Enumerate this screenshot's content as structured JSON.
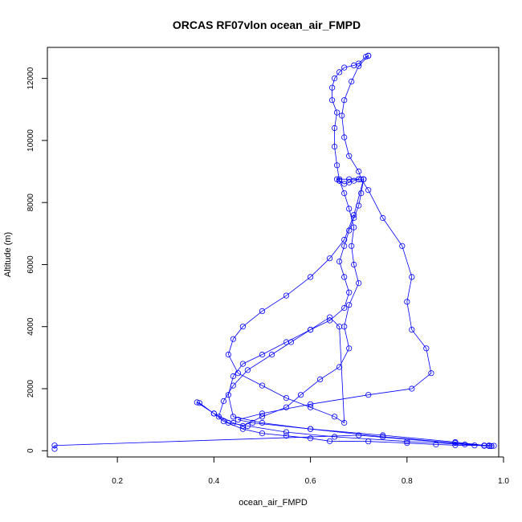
{
  "chart_data": {
    "type": "line",
    "title": "ORCAS RF07vlon ocean_air_FMPD",
    "xlabel": "ocean_air_FMPD",
    "ylabel": "Altitude (m)",
    "xlim": [
      0.055,
      0.99
    ],
    "ylim": [
      -200,
      13000
    ],
    "x_ticks": [
      0.2,
      0.4,
      0.6,
      0.8,
      1.0
    ],
    "x_tick_labels": [
      "0.2",
      "0.4",
      "0.6",
      "0.8",
      "1.0"
    ],
    "y_ticks": [
      0,
      2000,
      4000,
      6000,
      8000,
      10000,
      12000
    ],
    "y_tick_labels": [
      "0",
      "2000",
      "4000",
      "6000",
      "8000",
      "10000",
      "12000"
    ],
    "grid": false,
    "series_color": "#0000ff",
    "marker": "open-circle",
    "series": [
      {
        "x": [
          0.07,
          0.07,
          0.7,
          0.96,
          0.98,
          0.97,
          0.94,
          0.9,
          0.86,
          0.8,
          0.72,
          0.64,
          0.6,
          0.55,
          0.5,
          0.46,
          0.42,
          0.4,
          0.37,
          0.365,
          0.4,
          0.44,
          0.46,
          0.5,
          0.55,
          0.58,
          0.62,
          0.66,
          0.68,
          0.67,
          0.68,
          0.7,
          0.69,
          0.685,
          0.69,
          0.68,
          0.67,
          0.66,
          0.655,
          0.65,
          0.65,
          0.655,
          0.645,
          0.645,
          0.65,
          0.66,
          0.67,
          0.69,
          0.7,
          0.715,
          0.72
        ],
        "y": [
          60,
          170,
          500,
          160,
          160,
          170,
          170,
          180,
          200,
          250,
          300,
          310,
          400,
          480,
          560,
          700,
          950,
          1200,
          1540,
          1560,
          1200,
          900,
          800,
          1100,
          1400,
          1800,
          2300,
          2700,
          3300,
          4000,
          4700,
          5400,
          6000,
          6600,
          7200,
          7800,
          8300,
          8700,
          9200,
          9800,
          10400,
          10900,
          11300,
          11700,
          12000,
          12200,
          12350,
          12420,
          12480,
          12700,
          12730
        ]
      },
      {
        "x": [
          0.72,
          0.7,
          0.685,
          0.67,
          0.665,
          0.67,
          0.68,
          0.7,
          0.705,
          0.72,
          0.75,
          0.79,
          0.81,
          0.8,
          0.81,
          0.84,
          0.85,
          0.81,
          0.72,
          0.6,
          0.5,
          0.45,
          0.48,
          0.6,
          0.75,
          0.9,
          0.96,
          0.975
        ],
        "y": [
          12730,
          12400,
          11900,
          11300,
          10800,
          10100,
          9500,
          9000,
          8750,
          8400,
          7500,
          6600,
          5600,
          4800,
          3900,
          3300,
          2500,
          2000,
          1800,
          1500,
          1200,
          1000,
          900,
          700,
          450,
          250,
          170,
          150
        ]
      },
      {
        "x": [
          0.975,
          0.9,
          0.75,
          0.6,
          0.5,
          0.44,
          0.43,
          0.44,
          0.46,
          0.5,
          0.55,
          0.6,
          0.64,
          0.67,
          0.68,
          0.67,
          0.66,
          0.67,
          0.68,
          0.69,
          0.7,
          0.705,
          0.71,
          0.7,
          0.69,
          0.68,
          0.67,
          0.66,
          0.655,
          0.66,
          0.68,
          0.7,
          0.71
        ],
        "y": [
          150,
          280,
          500,
          700,
          900,
          1100,
          1800,
          2400,
          2800,
          3100,
          3500,
          3900,
          4200,
          4600,
          5100,
          5600,
          6100,
          6600,
          7100,
          7500,
          7900,
          8300,
          8750,
          8750,
          8700,
          8650,
          8600,
          8700,
          8750,
          8750,
          8750,
          8750,
          8750
        ]
      },
      {
        "x": [
          0.71,
          0.69,
          0.67,
          0.64,
          0.6,
          0.55,
          0.5,
          0.46,
          0.44,
          0.43,
          0.45,
          0.5,
          0.55,
          0.6,
          0.65,
          0.67,
          0.66,
          0.64,
          0.6,
          0.56,
          0.52,
          0.47,
          0.44,
          0.42,
          0.41,
          0.43,
          0.47,
          0.55,
          0.65,
          0.8,
          0.92,
          0.96,
          0.97
        ],
        "y": [
          8750,
          7600,
          6800,
          6200,
          5600,
          5000,
          4500,
          4000,
          3600,
          3100,
          2500,
          2100,
          1700,
          1400,
          1100,
          900,
          4000,
          4300,
          3900,
          3500,
          3100,
          2600,
          2100,
          1600,
          1100,
          900,
          800,
          600,
          450,
          300,
          200,
          160,
          150
        ]
      }
    ]
  }
}
